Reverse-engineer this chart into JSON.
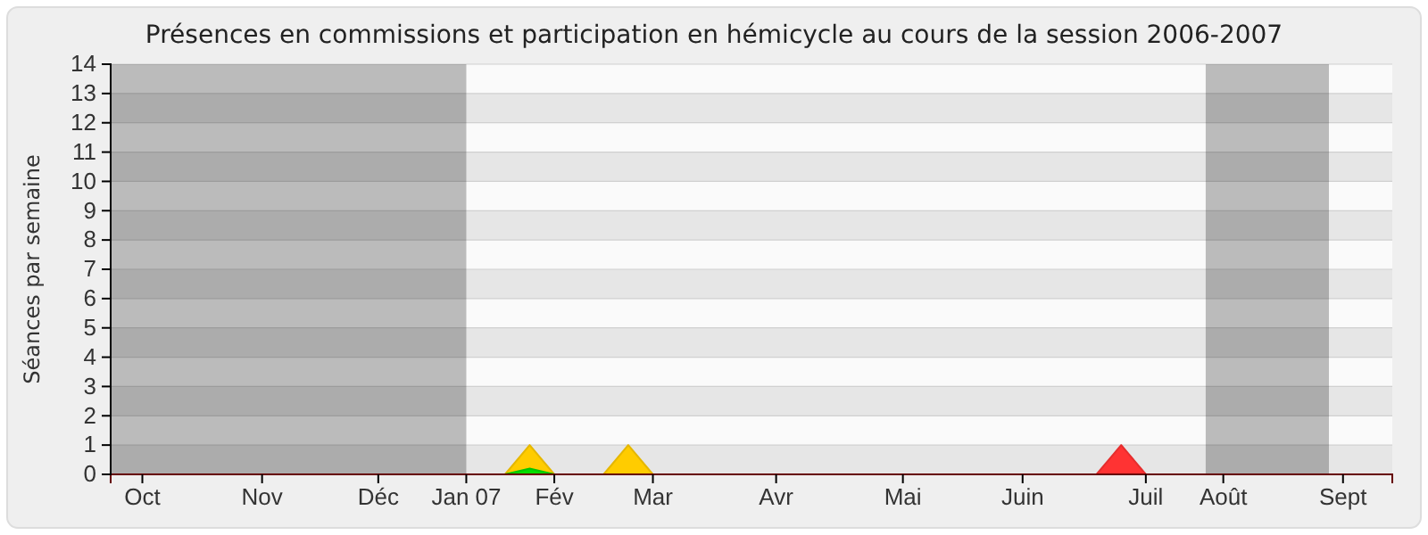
{
  "chart_data": {
    "type": "area",
    "title": "Présences en commissions et participation en hémicycle au cours de la session 2006-2007",
    "ylabel": "Séances par semaine",
    "xlim": [
      "2006-10-01",
      "2007-09-30"
    ],
    "xticks": [
      {
        "value": "2006-10-10",
        "label": "Oct"
      },
      {
        "value": "2006-11-13",
        "label": "Nov"
      },
      {
        "value": "2006-12-16",
        "label": "Déc"
      },
      {
        "value": "2007-01-10",
        "label": "Jan 07"
      },
      {
        "value": "2007-02-04",
        "label": "Fév"
      },
      {
        "value": "2007-03-04",
        "label": "Mar"
      },
      {
        "value": "2007-04-08",
        "label": "Avr"
      },
      {
        "value": "2007-05-14",
        "label": "Mai"
      },
      {
        "value": "2007-06-17",
        "label": "Juin"
      },
      {
        "value": "2007-07-22",
        "label": "Juil"
      },
      {
        "value": "2007-08-13",
        "label": "Août"
      },
      {
        "value": "2007-09-16",
        "label": "Sept"
      }
    ],
    "ylim": [
      0,
      14
    ],
    "yticks": [
      0,
      1,
      2,
      3,
      4,
      5,
      6,
      7,
      8,
      9,
      10,
      11,
      12,
      13,
      14
    ],
    "grid": "y",
    "bands": [
      {
        "axis": "x",
        "from": "2006-10-01",
        "to": "2007-01-10",
        "color": "#000000"
      },
      {
        "axis": "x",
        "from": "2007-08-08",
        "to": "2007-09-12",
        "color": "#000000"
      }
    ],
    "series": [
      {
        "color": "#ffcc00",
        "x": [
          "2007-01-21",
          "2007-01-28",
          "2007-02-04",
          "2007-02-18",
          "2007-02-25",
          "2007-03-04"
        ],
        "values": [
          0,
          1,
          0,
          0,
          1,
          0
        ]
      },
      {
        "color": "#00dd00",
        "x": [
          "2007-01-21",
          "2007-01-28",
          "2007-02-04"
        ],
        "values": [
          0,
          0.2,
          0
        ]
      },
      {
        "color": "#ff3333",
        "x": [
          "2007-07-08",
          "2007-07-15",
          "2007-07-22"
        ],
        "values": [
          0,
          1,
          0
        ]
      }
    ]
  }
}
